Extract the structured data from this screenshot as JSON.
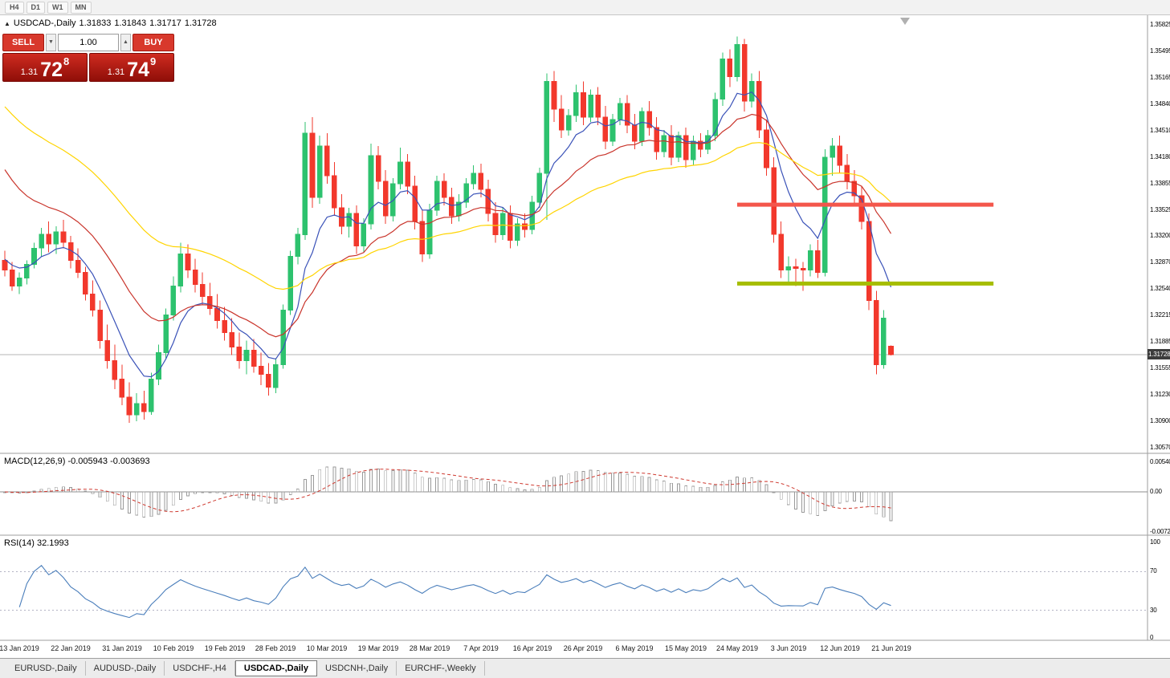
{
  "toolbar": {
    "timeframes": [
      "H4",
      "D1",
      "W1",
      "MN"
    ]
  },
  "chart": {
    "symbol_label": "USDCAD-,Daily",
    "o": "1.31833",
    "h": "1.31843",
    "l": "1.31717",
    "c": "1.31728"
  },
  "one_click": {
    "sell_label": "SELL",
    "buy_label": "BUY",
    "volume": "1.00",
    "sell_price_small": "1.31",
    "sell_price_big": "72",
    "sell_price_sup": "8",
    "buy_price_small": "1.31",
    "buy_price_big": "74",
    "buy_price_sup": "9"
  },
  "price_axis": [
    "1.35825",
    "1.35495",
    "1.35165",
    "1.34840",
    "1.34510",
    "1.34180",
    "1.33855",
    "1.33525",
    "1.33200",
    "1.32870",
    "1.32540",
    "1.32215",
    "1.31885",
    "1.31555",
    "1.31230",
    "1.30900",
    "1.30570"
  ],
  "price_tag": "1.31728",
  "macd": {
    "label": "MACD(12,26,9) -0.005943 -0.003693",
    "axis": [
      "0.005402",
      "0.00",
      "-0.007243"
    ]
  },
  "rsi": {
    "label": "RSI(14) 32.1993",
    "axis": [
      "100",
      "70",
      "30",
      "0"
    ]
  },
  "tabs": [
    {
      "label": "EURUSD-,Daily",
      "active": false
    },
    {
      "label": "AUDUSD-,Daily",
      "active": false
    },
    {
      "label": "USDCHF-,H4",
      "active": false
    },
    {
      "label": "USDCAD-,Daily",
      "active": true
    },
    {
      "label": "USDCNH-,Daily",
      "active": false
    },
    {
      "label": "EURCHF-,Weekly",
      "active": false
    }
  ],
  "colors": {
    "bull": "#2dc26e",
    "bear": "#f2382c",
    "ma_fast": "#3a52b8",
    "ma_mid": "#c9342b",
    "ma_slow": "#ffd400",
    "resistance": "#f4564b",
    "support": "#a6bd00",
    "macd_hist": "#9a9a9a",
    "macd_signal": "#cf3a30",
    "rsi": "#4a7ebb",
    "price_line": "#b4b4b4",
    "tag_bg": "#3c3c3c"
  },
  "chart_data": {
    "type": "candlestick",
    "title": "USDCAD-,Daily",
    "symbol": "USDCAD-",
    "timeframe": "Daily",
    "current_bar": {
      "open": 1.31833,
      "high": 1.31843,
      "low": 1.31717,
      "close": 1.31728
    },
    "price_range": [
      1.30495,
      1.35935
    ],
    "date_labels": [
      "13 Jan 2019",
      "22 Jan 2019",
      "31 Jan 2019",
      "10 Feb 2019",
      "19 Feb 2019",
      "28 Feb 2019",
      "10 Mar 2019",
      "19 Mar 2019",
      "28 Mar 2019",
      "7 Apr 2019",
      "16 Apr 2019",
      "26 Apr 2019",
      "6 May 2019",
      "15 May 2019",
      "24 May 2019",
      "3 Jun 2019",
      "12 Jun 2019",
      "21 Jun 2019"
    ],
    "label_indices": [
      2,
      9,
      16,
      23,
      30,
      37,
      44,
      51,
      58,
      65,
      72,
      79,
      86,
      93,
      100,
      107,
      114,
      121
    ],
    "levels": [
      {
        "name": "resistance",
        "price": 1.3359,
        "color": "resistance",
        "start_index": 100,
        "end_index": 135,
        "thickness": 5
      },
      {
        "name": "support",
        "price": 1.3261,
        "color": "support",
        "start_index": 100,
        "end_index": 135,
        "thickness": 5
      }
    ],
    "moving_averages": [
      {
        "period": 8,
        "color": "ma_fast",
        "left_anchor": 1.3295
      },
      {
        "period": 21,
        "color": "ma_mid",
        "left_anchor": 1.3415
      },
      {
        "period": 45,
        "color": "ma_slow",
        "left_anchor": 1.349
      }
    ],
    "indicators": {
      "macd": {
        "fast": 12,
        "slow": 26,
        "signal": 9,
        "value": -0.005943,
        "signal_value": -0.003693,
        "scale_max": 0.005402,
        "scale_min": -0.007243
      },
      "rsi": {
        "period": 14,
        "value": 32.1993,
        "levels": [
          70,
          30
        ],
        "scale": [
          0,
          100
        ]
      }
    },
    "candles": [
      [
        1.329,
        1.3302,
        1.327,
        1.3278
      ],
      [
        1.3278,
        1.3288,
        1.3252,
        1.3258
      ],
      [
        1.3258,
        1.3275,
        1.3248,
        1.3268
      ],
      [
        1.3268,
        1.329,
        1.326,
        1.3285
      ],
      [
        1.3285,
        1.3312,
        1.328,
        1.3305
      ],
      [
        1.3305,
        1.333,
        1.3295,
        1.3322
      ],
      [
        1.3322,
        1.3338,
        1.33,
        1.331
      ],
      [
        1.331,
        1.3332,
        1.3298,
        1.3325
      ],
      [
        1.3325,
        1.334,
        1.3305,
        1.3312
      ],
      [
        1.3312,
        1.332,
        1.328,
        1.329
      ],
      [
        1.329,
        1.3305,
        1.3268,
        1.3275
      ],
      [
        1.3275,
        1.3282,
        1.324,
        1.3248
      ],
      [
        1.3248,
        1.3265,
        1.322,
        1.3228
      ],
      [
        1.3228,
        1.324,
        1.318,
        1.319
      ],
      [
        1.319,
        1.321,
        1.3155,
        1.3165
      ],
      [
        1.3165,
        1.3185,
        1.313,
        1.3142
      ],
      [
        1.3142,
        1.316,
        1.311,
        1.312
      ],
      [
        1.312,
        1.3138,
        1.3088,
        1.3098
      ],
      [
        1.3098,
        1.3125,
        1.309,
        1.3112
      ],
      [
        1.3112,
        1.3128,
        1.3092,
        1.3102
      ],
      [
        1.3102,
        1.315,
        1.3098,
        1.3142
      ],
      [
        1.3142,
        1.3185,
        1.3135,
        1.3175
      ],
      [
        1.3175,
        1.323,
        1.3168,
        1.3222
      ],
      [
        1.3222,
        1.327,
        1.3215,
        1.3258
      ],
      [
        1.3258,
        1.3312,
        1.325,
        1.3298
      ],
      [
        1.3298,
        1.331,
        1.3268,
        1.3278
      ],
      [
        1.3278,
        1.3292,
        1.325,
        1.326
      ],
      [
        1.326,
        1.3275,
        1.3235,
        1.3245
      ],
      [
        1.3245,
        1.3262,
        1.3222,
        1.323
      ],
      [
        1.323,
        1.3248,
        1.3205,
        1.3215
      ],
      [
        1.3215,
        1.3232,
        1.319,
        1.32
      ],
      [
        1.32,
        1.3218,
        1.3172,
        1.3182
      ],
      [
        1.3182,
        1.32,
        1.3155,
        1.3165
      ],
      [
        1.3165,
        1.319,
        1.3148,
        1.3178
      ],
      [
        1.3178,
        1.3192,
        1.315,
        1.3158
      ],
      [
        1.3158,
        1.3175,
        1.3135,
        1.3148
      ],
      [
        1.3148,
        1.3162,
        1.3122,
        1.3132
      ],
      [
        1.3132,
        1.3168,
        1.3125,
        1.316
      ],
      [
        1.316,
        1.3235,
        1.3155,
        1.3228
      ],
      [
        1.3228,
        1.3302,
        1.3222,
        1.3295
      ],
      [
        1.3295,
        1.333,
        1.3285,
        1.3322
      ],
      [
        1.3322,
        1.3462,
        1.3315,
        1.3448
      ],
      [
        1.3448,
        1.3468,
        1.3355,
        1.3368
      ],
      [
        1.3368,
        1.3445,
        1.336,
        1.3432
      ],
      [
        1.3432,
        1.3448,
        1.3385,
        1.3395
      ],
      [
        1.3395,
        1.3412,
        1.3345,
        1.3355
      ],
      [
        1.3355,
        1.3372,
        1.3322,
        1.3332
      ],
      [
        1.3332,
        1.3355,
        1.3318,
        1.3348
      ],
      [
        1.3348,
        1.3358,
        1.3298,
        1.3308
      ],
      [
        1.3308,
        1.3342,
        1.33,
        1.3335
      ],
      [
        1.3335,
        1.3435,
        1.3328,
        1.342
      ],
      [
        1.342,
        1.3432,
        1.3378,
        1.3388
      ],
      [
        1.3388,
        1.3402,
        1.3335,
        1.3345
      ],
      [
        1.3345,
        1.3392,
        1.3338,
        1.3385
      ],
      [
        1.3385,
        1.343,
        1.3378,
        1.3412
      ],
      [
        1.3412,
        1.3422,
        1.3372,
        1.3382
      ],
      [
        1.3382,
        1.3395,
        1.3328,
        1.3338
      ],
      [
        1.3338,
        1.3352,
        1.3288,
        1.3298
      ],
      [
        1.3298,
        1.336,
        1.3292,
        1.3352
      ],
      [
        1.3352,
        1.3395,
        1.3345,
        1.3388
      ],
      [
        1.3388,
        1.3398,
        1.3358,
        1.3368
      ],
      [
        1.3368,
        1.338,
        1.3335,
        1.3345
      ],
      [
        1.3345,
        1.3372,
        1.3338,
        1.3362
      ],
      [
        1.3362,
        1.3392,
        1.3355,
        1.3385
      ],
      [
        1.3385,
        1.3408,
        1.3378,
        1.3398
      ],
      [
        1.3398,
        1.341,
        1.3368,
        1.3378
      ],
      [
        1.3378,
        1.339,
        1.3338,
        1.3348
      ],
      [
        1.3348,
        1.3362,
        1.3312,
        1.3322
      ],
      [
        1.3322,
        1.3355,
        1.3315,
        1.3348
      ],
      [
        1.3348,
        1.3358,
        1.3305,
        1.3315
      ],
      [
        1.3315,
        1.3342,
        1.3308,
        1.3335
      ],
      [
        1.3335,
        1.3348,
        1.3318,
        1.3328
      ],
      [
        1.3328,
        1.337,
        1.3322,
        1.3362
      ],
      [
        1.3362,
        1.3405,
        1.3355,
        1.3398
      ],
      [
        1.3398,
        1.3522,
        1.334,
        1.3512
      ],
      [
        1.3512,
        1.3525,
        1.3462,
        1.3478
      ],
      [
        1.3478,
        1.3495,
        1.3442,
        1.3452
      ],
      [
        1.3452,
        1.3478,
        1.3445,
        1.347
      ],
      [
        1.347,
        1.3508,
        1.3462,
        1.3498
      ],
      [
        1.3498,
        1.3512,
        1.3458,
        1.3468
      ],
      [
        1.3468,
        1.3502,
        1.3462,
        1.3495
      ],
      [
        1.3495,
        1.3505,
        1.3458,
        1.3468
      ],
      [
        1.3468,
        1.3482,
        1.3428,
        1.3438
      ],
      [
        1.3438,
        1.3472,
        1.3432,
        1.3465
      ],
      [
        1.3465,
        1.3492,
        1.3458,
        1.3485
      ],
      [
        1.3485,
        1.3495,
        1.3448,
        1.3458
      ],
      [
        1.3458,
        1.3472,
        1.3428,
        1.3438
      ],
      [
        1.3438,
        1.348,
        1.3432,
        1.3475
      ],
      [
        1.3475,
        1.3488,
        1.3445,
        1.3455
      ],
      [
        1.3455,
        1.3468,
        1.3415,
        1.3425
      ],
      [
        1.3425,
        1.3452,
        1.3418,
        1.3445
      ],
      [
        1.3445,
        1.3458,
        1.3408,
        1.3418
      ],
      [
        1.3418,
        1.345,
        1.3412,
        1.3445
      ],
      [
        1.3445,
        1.3455,
        1.3405,
        1.3415
      ],
      [
        1.3415,
        1.3445,
        1.3408,
        1.3438
      ],
      [
        1.3438,
        1.3448,
        1.3418,
        1.3428
      ],
      [
        1.3428,
        1.3452,
        1.3422,
        1.3445
      ],
      [
        1.3445,
        1.3498,
        1.3438,
        1.349
      ],
      [
        1.349,
        1.3548,
        1.3482,
        1.354
      ],
      [
        1.354,
        1.3552,
        1.3505,
        1.3518
      ],
      [
        1.3518,
        1.3568,
        1.3512,
        1.3558
      ],
      [
        1.3558,
        1.3565,
        1.3475,
        1.3488
      ],
      [
        1.3488,
        1.3522,
        1.348,
        1.3512
      ],
      [
        1.3512,
        1.3525,
        1.3442,
        1.3452
      ],
      [
        1.3452,
        1.3465,
        1.3395,
        1.3405
      ],
      [
        1.3405,
        1.3418,
        1.3312,
        1.3322
      ],
      [
        1.3322,
        1.3338,
        1.3268,
        1.3278
      ],
      [
        1.3278,
        1.3295,
        1.3262,
        1.3282
      ],
      [
        1.3282,
        1.3292,
        1.3258,
        1.328
      ],
      [
        1.328,
        1.3288,
        1.3252,
        1.3278
      ],
      [
        1.3278,
        1.331,
        1.327,
        1.3302
      ],
      [
        1.3302,
        1.3315,
        1.3268,
        1.3275
      ],
      [
        1.3275,
        1.3428,
        1.327,
        1.3418
      ],
      [
        1.3418,
        1.3442,
        1.3395,
        1.3432
      ],
      [
        1.3432,
        1.3445,
        1.3398,
        1.3408
      ],
      [
        1.3408,
        1.3422,
        1.3378,
        1.3388
      ],
      [
        1.3388,
        1.3402,
        1.336,
        1.337
      ],
      [
        1.337,
        1.3382,
        1.3328,
        1.3338
      ],
      [
        1.3338,
        1.3348,
        1.3228,
        1.324
      ],
      [
        1.324,
        1.3252,
        1.3148,
        1.316
      ],
      [
        1.316,
        1.3228,
        1.3155,
        1.3218
      ],
      [
        1.31833,
        1.31843,
        1.31717,
        1.31728
      ]
    ]
  }
}
